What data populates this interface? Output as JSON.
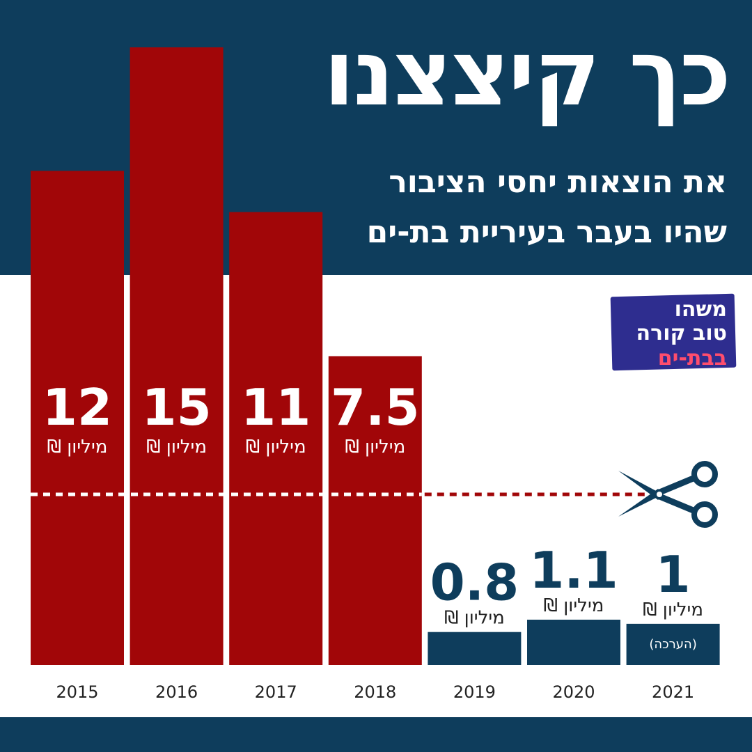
{
  "header": {
    "title": "כך קיצצנו",
    "subtitle_line1": "את הוצאות יחסי הציבור",
    "subtitle_line2": "שהיו בעבר בעיריית בת-ים"
  },
  "logo": {
    "line1": "משהו",
    "line2": "טוב קורה",
    "line3": "בבת-ים"
  },
  "colors": {
    "navy": "#0e3d5c",
    "red": "#a10608",
    "white": "#ffffff",
    "text_dark": "#222222",
    "logo_bg": "#2e2d8f",
    "logo_accent": "#ff4d6d"
  },
  "icons": {
    "scissors": "scissors-icon"
  },
  "chart_data": {
    "type": "bar",
    "categories": [
      "2015",
      "2016",
      "2017",
      "2018",
      "2019",
      "2020",
      "2021"
    ],
    "values": [
      12,
      15,
      11,
      7.5,
      0.8,
      1.1,
      1
    ],
    "value_labels": [
      "12",
      "15",
      "11",
      "7.5",
      "0.8",
      "1.1",
      "1"
    ],
    "unit_label": "מיליון ₪",
    "annotations": [
      "",
      "",
      "",
      "",
      "",
      "",
      "(הערכה)"
    ],
    "bar_colors": [
      "#a10608",
      "#a10608",
      "#a10608",
      "#a10608",
      "#0e3d5c",
      "#0e3d5c",
      "#0e3d5c"
    ],
    "ylim": [
      0,
      15
    ],
    "cut_line": "dotted line with scissors between the 2015–2018 values and the 2019–2021 values",
    "grid": false,
    "legend": "none"
  }
}
